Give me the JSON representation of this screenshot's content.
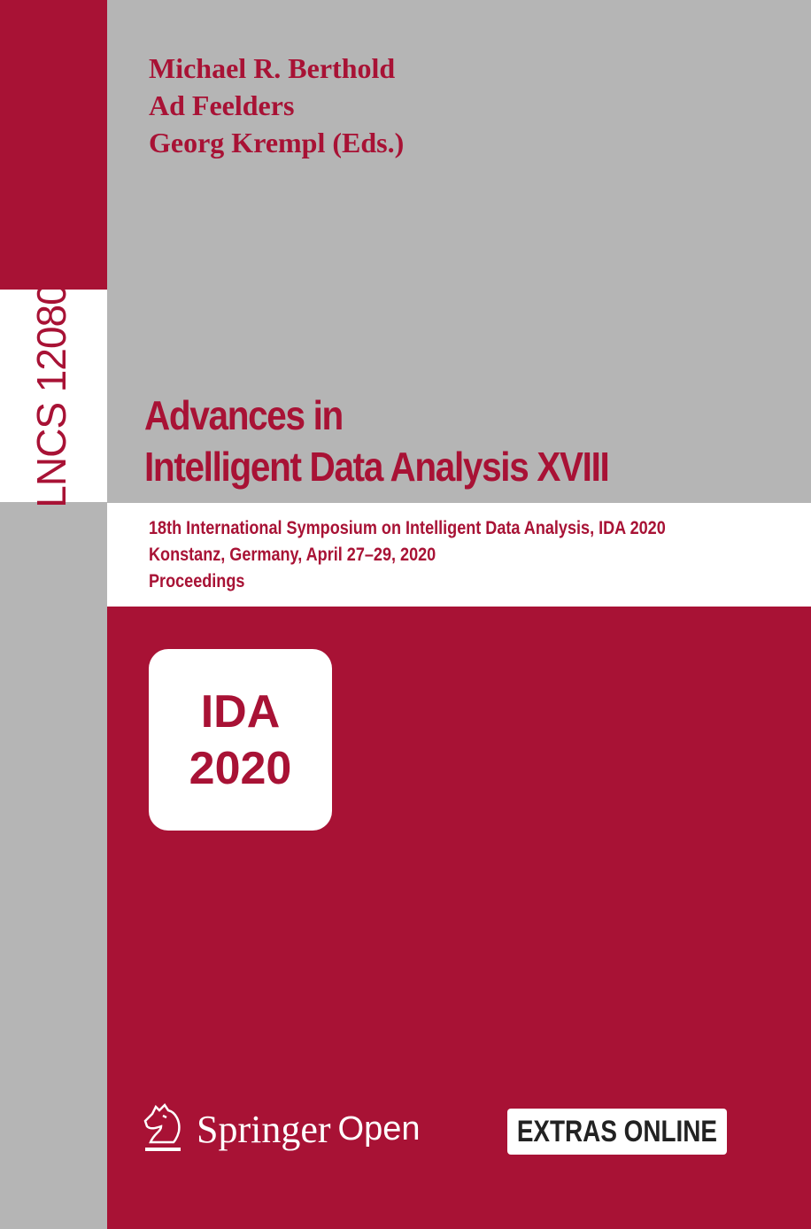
{
  "series": "LNCS 12080",
  "editors": [
    "Michael R. Berthold",
    "Ad Feelders",
    "Georg Krempl (Eds.)"
  ],
  "title": [
    "Advances in",
    "Intelligent Data Analysis XVIII"
  ],
  "subtitle": [
    "18th International Symposium on Intelligent Data Analysis, IDA 2020",
    "Konstanz, Germany, April 27–29, 2020",
    "Proceedings"
  ],
  "conference_logo": [
    "IDA",
    "2020"
  ],
  "publisher": {
    "name": "Springer",
    "imprint": "Open",
    "icon": "knight-horse-icon"
  },
  "extras_label": "EXTRAS ONLINE",
  "colors": {
    "brand_red": "#a81235",
    "gray": "#b5b5b5",
    "white": "#ffffff"
  }
}
